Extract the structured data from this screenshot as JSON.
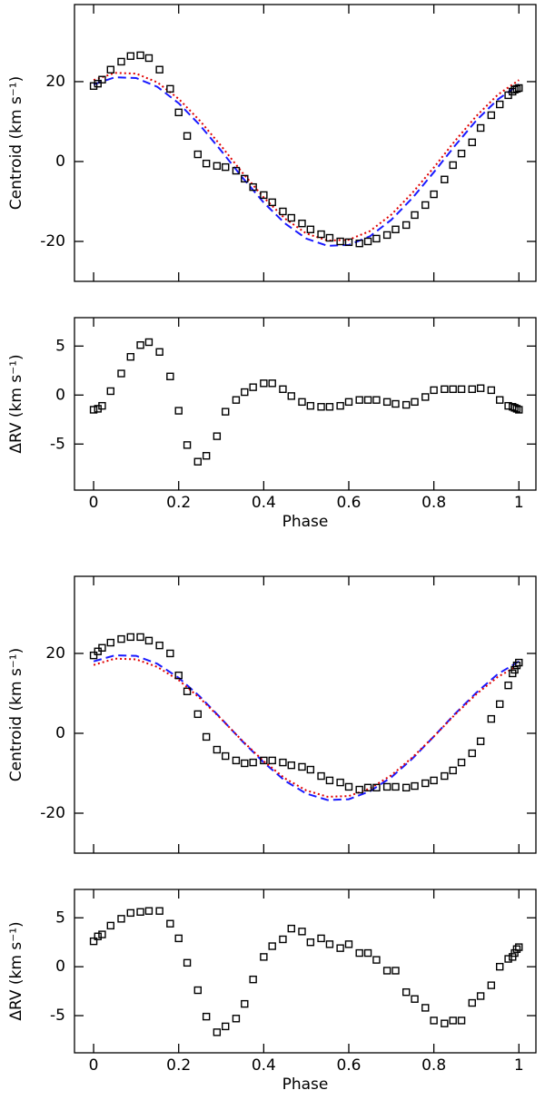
{
  "chart_data": [
    {
      "type": "scatter",
      "ylabel": "Centroid (km s⁻¹)",
      "x": [
        0,
        0.01,
        0.02,
        0.04,
        0.065,
        0.087,
        0.11,
        0.13,
        0.155,
        0.18,
        0.2,
        0.22,
        0.245,
        0.265,
        0.29,
        0.31,
        0.335,
        0.355,
        0.375,
        0.4,
        0.42,
        0.445,
        0.465,
        0.49,
        0.51,
        0.535,
        0.555,
        0.58,
        0.6,
        0.625,
        0.645,
        0.665,
        0.69,
        0.71,
        0.735,
        0.755,
        0.78,
        0.8,
        0.825,
        0.845,
        0.865,
        0.89,
        0.91,
        0.935,
        0.955,
        0.975,
        0.985,
        0.99,
        0.995,
        1.0
      ],
      "values": [
        18.9,
        19.5,
        20.5,
        23,
        25,
        26.4,
        26.6,
        25.9,
        23,
        18.2,
        12.3,
        6.4,
        1.8,
        -0.5,
        -1.1,
        -1.4,
        -2.3,
        -4.3,
        -6.4,
        -8.4,
        -10.2,
        -12.5,
        -14.1,
        -15.5,
        -17,
        -18.2,
        -19.1,
        -20,
        -20.2,
        -20.5,
        -20,
        -19.3,
        -18.4,
        -17,
        -15.9,
        -13.4,
        -10.9,
        -8.2,
        -4.5,
        -0.9,
        2,
        4.8,
        8.4,
        11.6,
        14.3,
        16.6,
        17.5,
        18,
        18.2,
        18.4
      ],
      "color": "#000000",
      "model_x": [
        0,
        0.05,
        0.1,
        0.15,
        0.2,
        0.25,
        0.3,
        0.35,
        0.4,
        0.45,
        0.5,
        0.55,
        0.6,
        0.65,
        0.7,
        0.75,
        0.8,
        0.85,
        0.9,
        0.95,
        1.0
      ],
      "models": [
        {
          "color": "#1a1aff",
          "style": "dashed",
          "values": [
            19.3,
            21.1,
            20.9,
            18.7,
            14.6,
            9.1,
            2.7,
            -4.0,
            -10.3,
            -15.5,
            -19.3,
            -21.1,
            -20.9,
            -18.7,
            -14.6,
            -9.1,
            -2.7,
            4.0,
            10.3,
            15.5,
            19.3
          ]
        },
        {
          "color": "#e00000",
          "style": "dotted",
          "values": [
            20.4,
            22.2,
            22.0,
            19.8,
            15.7,
            10.2,
            3.9,
            -2.8,
            -9.0,
            -14.3,
            -18.0,
            -19.8,
            -19.6,
            -17.4,
            -13.3,
            -7.8,
            -1.5,
            5.2,
            11.4,
            16.7,
            20.4
          ]
        }
      ],
      "xlim": [
        -0.045,
        1.04
      ],
      "xticks": [
        0,
        0.2,
        0.4,
        0.6,
        0.8,
        1
      ],
      "ylim": [
        -30,
        39.3
      ],
      "yticks": [
        -20,
        0,
        20
      ]
    },
    {
      "type": "scatter",
      "ylabel": "ΔRV (km s⁻¹)",
      "xlabel": "Phase",
      "x": [
        0,
        0.01,
        0.02,
        0.04,
        0.065,
        0.087,
        0.11,
        0.13,
        0.155,
        0.18,
        0.2,
        0.22,
        0.245,
        0.265,
        0.29,
        0.31,
        0.335,
        0.355,
        0.375,
        0.4,
        0.42,
        0.445,
        0.465,
        0.49,
        0.51,
        0.535,
        0.555,
        0.58,
        0.6,
        0.625,
        0.645,
        0.665,
        0.69,
        0.71,
        0.735,
        0.755,
        0.78,
        0.8,
        0.825,
        0.845,
        0.865,
        0.89,
        0.91,
        0.935,
        0.955,
        0.975,
        0.985,
        0.99,
        0.995,
        1.0
      ],
      "values": [
        -1.5,
        -1.4,
        -1.1,
        0.4,
        2.2,
        3.9,
        5.1,
        5.4,
        4.4,
        1.9,
        -1.6,
        -5.1,
        -6.8,
        -6.2,
        -4.2,
        -1.7,
        -0.5,
        0.3,
        0.8,
        1.2,
        1.2,
        0.6,
        -0.1,
        -0.7,
        -1.1,
        -1.2,
        -1.2,
        -1.1,
        -0.7,
        -0.5,
        -0.5,
        -0.5,
        -0.7,
        -0.9,
        -1.0,
        -0.7,
        -0.2,
        0.5,
        0.6,
        0.6,
        0.6,
        0.6,
        0.7,
        0.5,
        -0.5,
        -1.1,
        -1.2,
        -1.3,
        -1.4,
        -1.5
      ],
      "color": "#000000",
      "xlim": [
        -0.045,
        1.04
      ],
      "xticks": [
        0,
        0.2,
        0.4,
        0.6,
        0.8,
        1
      ],
      "ylim": [
        -9.7,
        7.9
      ],
      "yticks": [
        -5,
        0,
        5
      ]
    },
    {
      "type": "scatter",
      "ylabel": "Centroid (km s⁻¹)",
      "x": [
        0,
        0.01,
        0.02,
        0.04,
        0.065,
        0.087,
        0.11,
        0.13,
        0.155,
        0.18,
        0.2,
        0.22,
        0.245,
        0.265,
        0.29,
        0.31,
        0.335,
        0.355,
        0.375,
        0.4,
        0.42,
        0.445,
        0.465,
        0.49,
        0.51,
        0.535,
        0.555,
        0.58,
        0.6,
        0.625,
        0.645,
        0.665,
        0.69,
        0.71,
        0.735,
        0.755,
        0.78,
        0.8,
        0.825,
        0.845,
        0.865,
        0.89,
        0.91,
        0.935,
        0.955,
        0.975,
        0.985,
        0.99,
        0.995,
        1.0
      ],
      "values": [
        19.5,
        20.5,
        21.4,
        22.7,
        23.6,
        24.1,
        24.1,
        23.2,
        22,
        20,
        14.5,
        10.5,
        4.8,
        -0.9,
        -4.1,
        -5.7,
        -6.8,
        -7.5,
        -7.3,
        -6.8,
        -6.8,
        -7.3,
        -8,
        -8.4,
        -9.1,
        -10.7,
        -11.8,
        -12.3,
        -13.4,
        -14.1,
        -13.6,
        -13.6,
        -13.4,
        -13.4,
        -13.6,
        -13.2,
        -12.5,
        -11.8,
        -10.7,
        -9.3,
        -7.3,
        -5,
        -2,
        3.6,
        7.3,
        12,
        15,
        15.9,
        17,
        17.7
      ],
      "color": "#000000",
      "model_x": [
        0,
        0.05,
        0.1,
        0.15,
        0.2,
        0.25,
        0.3,
        0.35,
        0.4,
        0.45,
        0.5,
        0.55,
        0.6,
        0.65,
        0.7,
        0.75,
        0.8,
        0.85,
        0.9,
        0.95,
        1.0
      ],
      "models": [
        {
          "color": "#1a1aff",
          "style": "dashed",
          "values": [
            18.0,
            19.5,
            19.4,
            17.4,
            13.9,
            9.2,
            3.7,
            -2.0,
            -7.3,
            -11.9,
            -15.1,
            -16.7,
            -16.5,
            -14.5,
            -11.0,
            -6.3,
            -0.8,
            4.9,
            10.2,
            14.8,
            18.0
          ]
        },
        {
          "color": "#e00000",
          "style": "dotted",
          "values": [
            17.1,
            18.7,
            18.5,
            16.6,
            13.3,
            8.8,
            3.6,
            -1.9,
            -7.0,
            -11.3,
            -14.3,
            -15.9,
            -15.7,
            -13.8,
            -10.5,
            -6.0,
            -0.8,
            4.7,
            9.8,
            14.1,
            17.1
          ]
        }
      ],
      "xlim": [
        -0.045,
        1.04
      ],
      "xticks": [
        0,
        0.2,
        0.4,
        0.6,
        0.8,
        1
      ],
      "ylim": [
        -30,
        39.3
      ],
      "yticks": [
        -20,
        0,
        20
      ]
    },
    {
      "type": "scatter",
      "ylabel": "ΔRV (km s⁻¹)",
      "xlabel": "Phase",
      "x": [
        0,
        0.01,
        0.02,
        0.04,
        0.065,
        0.087,
        0.11,
        0.13,
        0.155,
        0.18,
        0.2,
        0.22,
        0.245,
        0.265,
        0.29,
        0.31,
        0.335,
        0.355,
        0.375,
        0.4,
        0.42,
        0.445,
        0.465,
        0.49,
        0.51,
        0.535,
        0.555,
        0.58,
        0.6,
        0.625,
        0.645,
        0.665,
        0.69,
        0.71,
        0.735,
        0.755,
        0.78,
        0.8,
        0.825,
        0.845,
        0.865,
        0.89,
        0.91,
        0.935,
        0.955,
        0.975,
        0.985,
        0.99,
        0.995,
        1.0
      ],
      "values": [
        2.6,
        3.1,
        3.3,
        4.2,
        4.9,
        5.5,
        5.6,
        5.7,
        5.7,
        4.4,
        2.9,
        0.4,
        -2.4,
        -5.1,
        -6.7,
        -6.1,
        -5.3,
        -3.8,
        -1.3,
        1.0,
        2.1,
        2.8,
        3.9,
        3.6,
        2.5,
        2.9,
        2.3,
        1.9,
        2.3,
        1.4,
        1.4,
        0.7,
        -0.4,
        -0.4,
        -2.6,
        -3.3,
        -4.2,
        -5.5,
        -5.8,
        -5.5,
        -5.5,
        -3.7,
        -3.0,
        -1.9,
        0,
        0.8,
        1.0,
        1.4,
        1.8,
        2.0
      ],
      "color": "#000000",
      "xlim": [
        -0.045,
        1.04
      ],
      "xticks": [
        0,
        0.2,
        0.4,
        0.6,
        0.8,
        1
      ],
      "ylim": [
        -8.8,
        7.9
      ],
      "yticks": [
        -5,
        0,
        5
      ]
    }
  ]
}
